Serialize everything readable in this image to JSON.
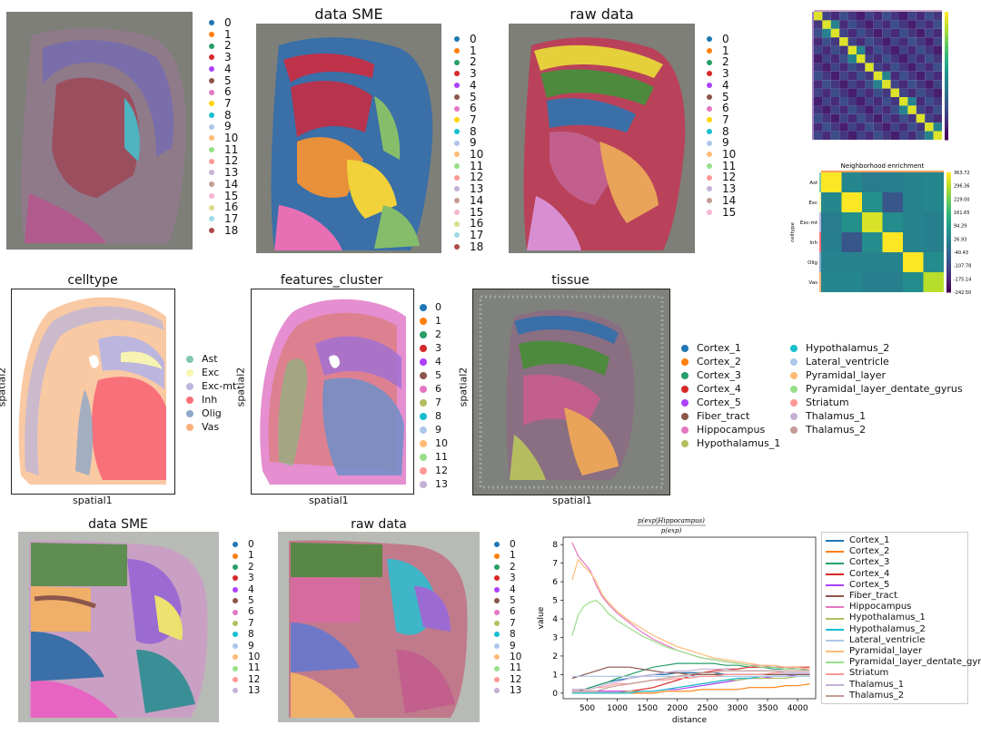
{
  "titles": {
    "sme_top": "data SME",
    "raw_top": "raw data",
    "celltype": "celltype",
    "features_cluster": "features_cluster",
    "tissue": "tissue",
    "sme_bottom": "data SME",
    "raw_bottom": "raw data",
    "heat_large": "Neighborhood enrichment"
  },
  "axes": {
    "spatial1": "spatial1",
    "spatial2": "spatial2",
    "celltype_y": "celltype"
  },
  "legends": {
    "clusters19": [
      "0",
      "1",
      "2",
      "3",
      "4",
      "5",
      "6",
      "7",
      "8",
      "9",
      "10",
      "11",
      "12",
      "13",
      "14",
      "15",
      "16",
      "17",
      "18"
    ],
    "clusters16": [
      "0",
      "1",
      "2",
      "3",
      "4",
      "5",
      "6",
      "7",
      "8",
      "9",
      "10",
      "11",
      "12",
      "13",
      "14",
      "15"
    ],
    "clusters14": [
      "0",
      "1",
      "2",
      "3",
      "4",
      "5",
      "6",
      "7",
      "8",
      "9",
      "10",
      "11",
      "12",
      "13"
    ],
    "celltypes": [
      "Ast",
      "Exc",
      "Exc-mt",
      "Inh",
      "Olig",
      "Vas"
    ],
    "tissue_col1": [
      "Cortex_1",
      "Cortex_2",
      "Cortex_3",
      "Cortex_4",
      "Cortex_5",
      "Fiber_tract",
      "Hippocampus",
      "Hypothalamus_1"
    ],
    "tissue_col2": [
      "Hypothalamus_2",
      "Lateral_ventricle",
      "Pyramidal_layer",
      "Pyramidal_layer_dentate_gyrus",
      "Striatum",
      "Thalamus_1",
      "Thalamus_2"
    ]
  },
  "palette": [
    "#1f77b4",
    "#ff7f0e",
    "#279e68",
    "#d62728",
    "#aa40fc",
    "#8c564b",
    "#e377c2",
    "#b5bd61",
    "#17becf",
    "#aec7e8",
    "#ffbb78",
    "#98df8a",
    "#ff9896",
    "#c5b0d5",
    "#c49c94",
    "#f7b6d2",
    "#dbdb8d",
    "#9edae5",
    "#ad494a"
  ],
  "palette19_top": [
    "#1f77b4",
    "#ff7f0e",
    "#279e68",
    "#d62728",
    "#aa40fc",
    "#8c564b",
    "#e377c2",
    "#ffd400",
    "#17becf",
    "#aec7e8",
    "#ffbb78",
    "#98df8a",
    "#ff9896",
    "#c5b0d5",
    "#c49c94",
    "#f7b6d2",
    "#dbdb8d",
    "#9edae5",
    "#ad494a"
  ],
  "celltype_colors": [
    "#7fc9b1",
    "#f7f7b0",
    "#bcb6de",
    "#f8707a",
    "#8fa8c8",
    "#f9b07a"
  ],
  "chart_data": [
    {
      "type": "heatmap",
      "title": "Neighborhood enrichment",
      "categories": [
        "Ast",
        "Exc",
        "Exc-mt",
        "Inh",
        "Olig",
        "Vas"
      ],
      "ylabel": "celltype",
      "colorbar_ticks": [
        "363.72",
        "296.36",
        "229.00",
        "161.65",
        "94.29",
        "26.93",
        "-40.43",
        "-107.78",
        "-175.14",
        "-242.50"
      ],
      "values": [
        [
          363.7,
          40,
          10,
          20,
          30,
          40
        ],
        [
          40,
          363.7,
          60,
          -80,
          30,
          40
        ],
        [
          10,
          60,
          330,
          50,
          30,
          20
        ],
        [
          20,
          -80,
          50,
          363.7,
          30,
          20
        ],
        [
          30,
          30,
          30,
          30,
          363.7,
          50
        ],
        [
          40,
          40,
          20,
          20,
          50,
          300
        ]
      ],
      "vmin": -242.5,
      "vmax": 363.72
    },
    {
      "type": "line",
      "title": "p(exp|Hippocampus) / p(exp)",
      "xlabel": "distance",
      "ylabel": "value",
      "xticks": [
        500,
        1000,
        1500,
        2000,
        2500,
        3000,
        3500,
        4000
      ],
      "yticks": [
        0,
        1,
        2,
        3,
        4,
        5,
        6,
        7,
        8
      ],
      "xlim": [
        100,
        4300
      ],
      "ylim": [
        -0.3,
        8.4
      ],
      "x": [
        250,
        350,
        450,
        550,
        650,
        750,
        850,
        1000,
        1200,
        1400,
        1600,
        1800,
        2000,
        2200,
        2400,
        2600,
        2800,
        3000,
        3200,
        3400,
        3600,
        3800,
        4000,
        4200
      ],
      "series": [
        {
          "name": "Cortex_1",
          "values": [
            0.2,
            0.2,
            0.2,
            0.3,
            0.4,
            0.5,
            0.6,
            0.7,
            0.8,
            0.9,
            1.0,
            1.0,
            1.1,
            1.1,
            1.1,
            1.1,
            1.0,
            1.0,
            1.0,
            1.0,
            1.0,
            1.0,
            1.0,
            1.0
          ]
        },
        {
          "name": "Cortex_2",
          "values": [
            0.0,
            0.0,
            0.0,
            0.0,
            0.0,
            0.0,
            0.0,
            0.0,
            0.0,
            0.0,
            0.0,
            0.1,
            0.1,
            0.1,
            0.2,
            0.2,
            0.2,
            0.2,
            0.3,
            0.3,
            0.3,
            0.4,
            0.4,
            0.5
          ]
        },
        {
          "name": "Cortex_3",
          "values": [
            0.1,
            0.1,
            0.2,
            0.3,
            0.4,
            0.5,
            0.6,
            0.8,
            1.0,
            1.2,
            1.4,
            1.5,
            1.6,
            1.6,
            1.6,
            1.6,
            1.5,
            1.5,
            1.4,
            1.4,
            1.3,
            1.3,
            1.3,
            1.3
          ]
        },
        {
          "name": "Cortex_4",
          "values": [
            0.1,
            0.1,
            0.1,
            0.1,
            0.1,
            0.1,
            0.1,
            0.1,
            0.1,
            0.2,
            0.3,
            0.5,
            0.7,
            0.9,
            1.1,
            1.2,
            1.3,
            1.3,
            1.4,
            1.4,
            1.4,
            1.4,
            1.4,
            1.4
          ]
        },
        {
          "name": "Cortex_5",
          "values": [
            0.1,
            0.1,
            0.1,
            0.1,
            0.1,
            0.1,
            0.1,
            0.1,
            0.1,
            0.1,
            0.1,
            0.2,
            0.2,
            0.3,
            0.4,
            0.5,
            0.6,
            0.7,
            0.8,
            0.8,
            0.9,
            0.9,
            1.0,
            1.0
          ]
        },
        {
          "name": "Fiber_tract",
          "values": [
            0.8,
            0.9,
            1.0,
            1.1,
            1.2,
            1.3,
            1.4,
            1.4,
            1.4,
            1.3,
            1.2,
            1.1,
            1.1,
            1.0,
            1.0,
            1.0,
            1.0,
            1.0,
            1.0,
            1.0,
            1.0,
            1.0,
            1.0,
            1.0
          ]
        },
        {
          "name": "Hippocampus",
          "values": [
            8.1,
            7.4,
            7.0,
            6.6,
            5.8,
            5.2,
            4.8,
            4.3,
            3.8,
            3.3,
            2.9,
            2.6,
            2.3,
            2.1,
            1.9,
            1.8,
            1.7,
            1.6,
            1.5,
            1.5,
            1.4,
            1.4,
            1.3,
            1.3
          ]
        },
        {
          "name": "Hypothalamus_1",
          "values": [
            0.0,
            0.0,
            0.0,
            0.0,
            0.0,
            0.0,
            0.0,
            0.0,
            0.1,
            0.1,
            0.1,
            0.2,
            0.3,
            0.4,
            0.5,
            0.6,
            0.7,
            0.7,
            0.8,
            0.8,
            0.8,
            0.8,
            0.9,
            0.9
          ]
        },
        {
          "name": "Hypothalamus_2",
          "values": [
            0.0,
            0.0,
            0.0,
            0.0,
            0.0,
            0.0,
            0.0,
            0.0,
            0.0,
            0.1,
            0.1,
            0.2,
            0.3,
            0.4,
            0.5,
            0.6,
            0.7,
            0.8,
            0.8,
            0.9,
            0.9,
            0.9,
            0.9,
            0.9
          ]
        },
        {
          "name": "Lateral_ventricle",
          "values": [
            0.9,
            0.9,
            0.9,
            0.9,
            0.9,
            0.9,
            0.9,
            0.9,
            0.9,
            0.9,
            0.9,
            0.9,
            0.9,
            0.9,
            0.9,
            0.9,
            0.9,
            0.9,
            0.9,
            0.9,
            0.9,
            0.9,
            0.9,
            0.9
          ]
        },
        {
          "name": "Pyramidal_layer",
          "values": [
            6.1,
            7.2,
            6.8,
            6.5,
            6.0,
            5.3,
            4.9,
            4.4,
            3.9,
            3.5,
            3.1,
            2.8,
            2.5,
            2.3,
            2.1,
            1.9,
            1.8,
            1.7,
            1.6,
            1.5,
            1.5,
            1.4,
            1.4,
            1.3
          ]
        },
        {
          "name": "Pyramidal_layer_dentate_gyrus",
          "values": [
            3.1,
            4.2,
            4.7,
            4.9,
            5.0,
            4.7,
            4.3,
            3.9,
            3.5,
            3.1,
            2.8,
            2.5,
            2.3,
            2.1,
            1.9,
            1.8,
            1.7,
            1.6,
            1.5,
            1.4,
            1.4,
            1.3,
            1.3,
            1.2
          ]
        },
        {
          "name": "Striatum",
          "values": [
            0.2,
            0.2,
            0.2,
            0.2,
            0.3,
            0.3,
            0.4,
            0.5,
            0.5,
            0.6,
            0.7,
            0.7,
            0.8,
            0.8,
            0.9,
            0.9,
            1.0,
            1.0,
            1.0,
            1.0,
            1.1,
            1.1,
            1.1,
            1.1
          ]
        },
        {
          "name": "Thalamus_1",
          "values": [
            0.2,
            0.2,
            0.2,
            0.2,
            0.3,
            0.4,
            0.5,
            0.6,
            0.8,
            0.9,
            1.0,
            1.1,
            1.2,
            1.2,
            1.3,
            1.3,
            1.3,
            1.2,
            1.2,
            1.2,
            1.2,
            1.1,
            1.1,
            1.1
          ]
        },
        {
          "name": "Thalamus_2",
          "values": [
            0.1,
            0.1,
            0.1,
            0.1,
            0.1,
            0.2,
            0.3,
            0.4,
            0.5,
            0.6,
            0.7,
            0.8,
            0.9,
            1.0,
            1.1,
            1.1,
            1.2,
            1.2,
            1.2,
            1.2,
            1.2,
            1.2,
            1.2,
            1.2
          ]
        }
      ]
    }
  ]
}
